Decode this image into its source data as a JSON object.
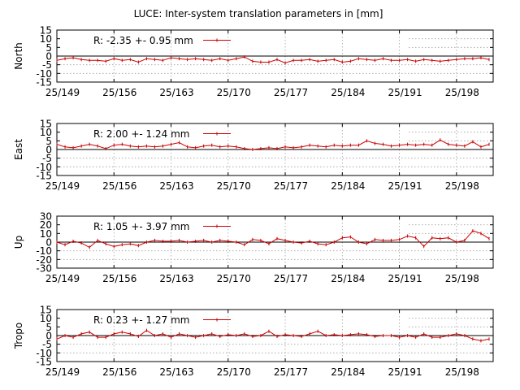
{
  "chart_data": {
    "type": "line",
    "title": "LUCE: Inter-system translation parameters in [mm]",
    "x_tick_labels": [
      "25/149",
      "25/156",
      "25/163",
      "25/170",
      "25/177",
      "25/184",
      "25/191",
      "25/198"
    ],
    "x_ticks": [
      149,
      156,
      163,
      170,
      177,
      184,
      191,
      198
    ],
    "xlim": [
      149,
      202.5
    ],
    "x": [
      149,
      150,
      151,
      152,
      153,
      154,
      155,
      156,
      157,
      158,
      159,
      160,
      161,
      162,
      163,
      164,
      165,
      166,
      167,
      168,
      169,
      170,
      171,
      172,
      173,
      174,
      175,
      176,
      177,
      178,
      179,
      180,
      181,
      182,
      183,
      184,
      185,
      186,
      187,
      188,
      189,
      190,
      191,
      192,
      193,
      194,
      195,
      196,
      197,
      198,
      199,
      200,
      201,
      202
    ],
    "panels": [
      {
        "ylabel": "North",
        "ylim": [
          -15,
          15
        ],
        "yticks": [
          -15,
          -10,
          -5,
          0,
          5,
          10,
          15
        ],
        "legend_text": "R:  -2.35 +- 0.95 mm",
        "values": [
          -2.5,
          -1.5,
          -1,
          -2,
          -2.5,
          -2.5,
          -3,
          -1.5,
          -2.5,
          -2,
          -3.5,
          -1.5,
          -2,
          -2.5,
          -1,
          -1.5,
          -2,
          -1.5,
          -2,
          -2.5,
          -1.5,
          -2.5,
          -1.5,
          -0.5,
          -3,
          -3.5,
          -3.5,
          -2,
          -4,
          -2.5,
          -2.5,
          -2,
          -3,
          -2.5,
          -2,
          -3.5,
          -3,
          -1.5,
          -2,
          -2.5,
          -1.5,
          -2.5,
          -2.5,
          -2,
          -3,
          -2,
          -2.5,
          -3,
          -2.5,
          -2,
          -1.5,
          -1.5,
          -1,
          -2
        ]
      },
      {
        "ylabel": "East",
        "ylim": [
          -15,
          15
        ],
        "yticks": [
          -15,
          -10,
          -5,
          0,
          5,
          10,
          15
        ],
        "legend_text": "R:  2.00 +- 1.24 mm",
        "values": [
          3,
          1.5,
          1,
          2,
          3,
          2,
          0.5,
          2.5,
          3,
          2,
          1.5,
          2,
          1.5,
          2,
          3,
          4,
          1.5,
          1,
          2,
          2.5,
          1.5,
          2,
          1.5,
          0.5,
          0,
          0.5,
          1,
          0.5,
          1.5,
          1,
          1.5,
          2.5,
          2,
          1.5,
          2.5,
          2,
          2.5,
          2.5,
          5,
          3.5,
          3,
          2,
          2.5,
          3,
          2.5,
          3,
          2.5,
          5.5,
          3,
          2.5,
          2,
          4.5,
          1.5,
          3
        ]
      },
      {
        "ylabel": "Up",
        "ylim": [
          -30,
          30
        ],
        "yticks": [
          -30,
          -20,
          -10,
          0,
          10,
          20,
          30
        ],
        "legend_text": "R:  1.05 +- 3.97 mm",
        "values": [
          0,
          -3,
          1,
          -1,
          -6,
          2,
          -2,
          -5,
          -3,
          -2,
          -4,
          0,
          2,
          1,
          1,
          2,
          0,
          1,
          2,
          0,
          2,
          1,
          0,
          -3,
          3,
          2,
          -2,
          4,
          2,
          0,
          -1,
          1,
          -2,
          -3,
          0,
          5,
          6,
          0,
          -2,
          3,
          2,
          2,
          3,
          7,
          5,
          -5,
          5,
          4,
          5,
          0,
          2,
          13,
          10,
          4
        ]
      },
      {
        "ylabel": "Tropo",
        "ylim": [
          -15,
          15
        ],
        "yticks": [
          -15,
          -10,
          -5,
          0,
          5,
          10,
          15
        ],
        "legend_text": "R:  0.23 +- 1.27 mm",
        "values": [
          -2,
          0,
          -1,
          1,
          2,
          -1,
          -1,
          1,
          2,
          1,
          -0.5,
          3,
          0,
          1,
          -1,
          1,
          0,
          -1,
          0,
          1,
          -0.5,
          0.5,
          0,
          1,
          -0.5,
          0,
          2.5,
          -0.5,
          0.5,
          0,
          -0.5,
          1,
          2.5,
          0,
          0.5,
          0,
          0.5,
          1,
          0.5,
          -0.5,
          0,
          0,
          -1,
          0,
          -1,
          1,
          -1,
          -1,
          0,
          1,
          0,
          -2,
          -3,
          -2
        ]
      }
    ]
  }
}
